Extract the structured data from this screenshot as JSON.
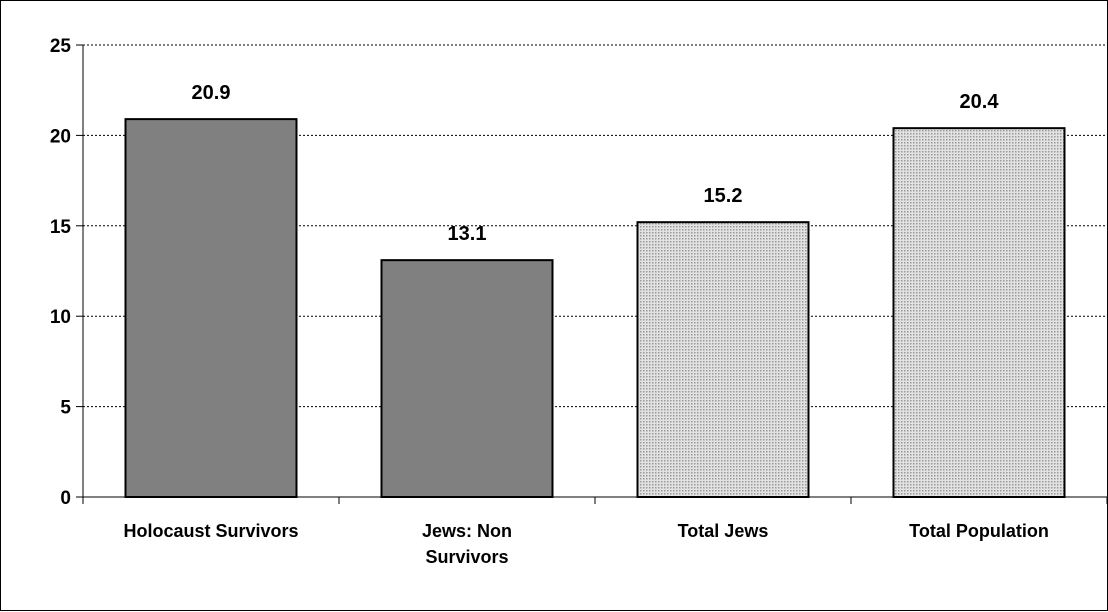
{
  "chart_data": {
    "type": "bar",
    "categories": [
      "Holocaust Survivors",
      "Jews: Non Survivors",
      "Total Jews",
      "Total Population"
    ],
    "category_lines": [
      [
        "Holocaust Survivors"
      ],
      [
        "Jews: Non",
        "Survivors"
      ],
      [
        "Total Jews"
      ],
      [
        "Total Population"
      ]
    ],
    "values": [
      20.9,
      13.1,
      15.2,
      20.4
    ],
    "value_labels": [
      "20.9",
      "13.1",
      "15.2",
      "20.4"
    ],
    "bar_fills": [
      "solid",
      "solid",
      "dotted",
      "dotted"
    ],
    "ylim": [
      0,
      25
    ],
    "yticks": [
      0,
      5,
      10,
      15,
      20,
      25
    ],
    "grid": true,
    "title": "",
    "xlabel": "",
    "ylabel": ""
  },
  "colors": {
    "solid_bar": "#808080",
    "dotted_bar_bg": "#e2e2e2",
    "dotted_bar_dot": "#9a9a9a",
    "axis": "#000000",
    "grid": "#000000"
  }
}
